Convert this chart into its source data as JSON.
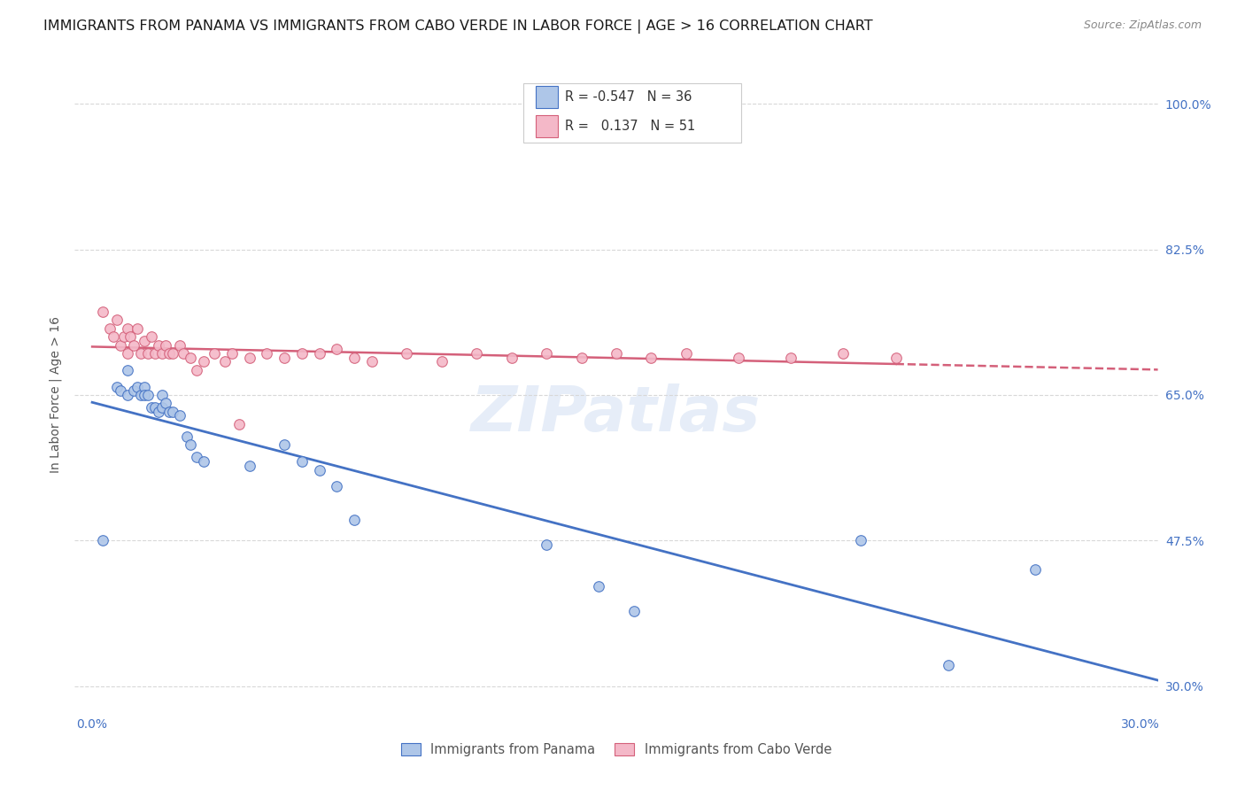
{
  "title": "IMMIGRANTS FROM PANAMA VS IMMIGRANTS FROM CABO VERDE IN LABOR FORCE | AGE > 16 CORRELATION CHART",
  "source": "Source: ZipAtlas.com",
  "ylabel": "In Labor Force | Age > 16",
  "xlim": [
    -0.005,
    0.305
  ],
  "ylim": [
    0.27,
    1.03
  ],
  "xticks": [
    0.0,
    0.05,
    0.1,
    0.15,
    0.2,
    0.25,
    0.3
  ],
  "xticklabels": [
    "0.0%",
    "",
    "",
    "",
    "",
    "",
    "30.0%"
  ],
  "ytick_vals": [
    0.3,
    0.475,
    0.65,
    0.825,
    1.0
  ],
  "ytick_labels": [
    "30.0%",
    "47.5%",
    "65.0%",
    "82.5%",
    "100.0%"
  ],
  "legend_r_panama": "-0.547",
  "legend_n_panama": "36",
  "legend_r_cabo": "0.137",
  "legend_n_cabo": "51",
  "panama_fill_color": "#aec6e8",
  "panama_edge_color": "#4472c4",
  "cabo_fill_color": "#f4b8c8",
  "cabo_edge_color": "#d4607a",
  "panama_line_color": "#4472c4",
  "cabo_line_color": "#d4607a",
  "background_color": "#ffffff",
  "grid_color": "#d8d8d8",
  "watermark_text": "ZIPatlas",
  "panama_x": [
    0.003,
    0.007,
    0.008,
    0.01,
    0.01,
    0.012,
    0.013,
    0.014,
    0.015,
    0.015,
    0.016,
    0.017,
    0.018,
    0.019,
    0.02,
    0.02,
    0.021,
    0.022,
    0.023,
    0.025,
    0.027,
    0.028,
    0.03,
    0.032,
    0.045,
    0.055,
    0.06,
    0.065,
    0.07,
    0.075,
    0.13,
    0.145,
    0.155,
    0.22,
    0.245,
    0.27
  ],
  "panama_y": [
    0.475,
    0.66,
    0.655,
    0.68,
    0.65,
    0.655,
    0.66,
    0.65,
    0.66,
    0.65,
    0.65,
    0.635,
    0.635,
    0.63,
    0.65,
    0.635,
    0.64,
    0.63,
    0.63,
    0.625,
    0.6,
    0.59,
    0.575,
    0.57,
    0.565,
    0.59,
    0.57,
    0.56,
    0.54,
    0.5,
    0.47,
    0.42,
    0.39,
    0.475,
    0.325,
    0.44
  ],
  "cabo_x": [
    0.003,
    0.005,
    0.006,
    0.007,
    0.008,
    0.009,
    0.01,
    0.01,
    0.011,
    0.012,
    0.013,
    0.014,
    0.015,
    0.016,
    0.017,
    0.018,
    0.019,
    0.02,
    0.021,
    0.022,
    0.023,
    0.025,
    0.026,
    0.028,
    0.03,
    0.032,
    0.035,
    0.038,
    0.04,
    0.042,
    0.045,
    0.05,
    0.055,
    0.06,
    0.065,
    0.07,
    0.075,
    0.08,
    0.09,
    0.1,
    0.11,
    0.12,
    0.13,
    0.14,
    0.15,
    0.16,
    0.17,
    0.185,
    0.2,
    0.215,
    0.23
  ],
  "cabo_y": [
    0.75,
    0.73,
    0.72,
    0.74,
    0.71,
    0.72,
    0.73,
    0.7,
    0.72,
    0.71,
    0.73,
    0.7,
    0.715,
    0.7,
    0.72,
    0.7,
    0.71,
    0.7,
    0.71,
    0.7,
    0.7,
    0.71,
    0.7,
    0.695,
    0.68,
    0.69,
    0.7,
    0.69,
    0.7,
    0.615,
    0.695,
    0.7,
    0.695,
    0.7,
    0.7,
    0.705,
    0.695,
    0.69,
    0.7,
    0.69,
    0.7,
    0.695,
    0.7,
    0.695,
    0.7,
    0.695,
    0.7,
    0.695,
    0.695,
    0.7,
    0.695
  ],
  "title_fontsize": 11.5,
  "source_fontsize": 9,
  "axis_label_fontsize": 10,
  "tick_fontsize": 10
}
